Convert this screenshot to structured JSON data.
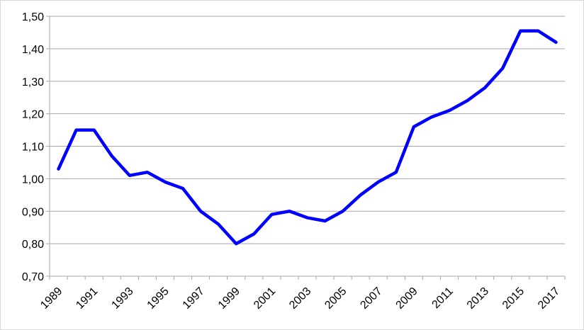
{
  "chart_data": {
    "type": "line",
    "categories": [
      "1989",
      null,
      "1991",
      null,
      "1993",
      null,
      "1995",
      null,
      "1997",
      null,
      "1999",
      null,
      "2001",
      null,
      "2003",
      null,
      "2005",
      null,
      "2007",
      null,
      "2009",
      null,
      "2011",
      null,
      "2013",
      null,
      "2015",
      null,
      "2017"
    ],
    "series": [
      {
        "color": "#0000ff",
        "values": [
          1.03,
          1.15,
          1.15,
          1.07,
          1.01,
          1.02,
          0.99,
          0.97,
          0.9,
          0.86,
          0.8,
          0.83,
          0.89,
          0.9,
          0.88,
          0.87,
          0.9,
          0.95,
          0.99,
          1.02,
          1.16,
          1.19,
          1.21,
          1.24,
          1.28,
          1.34,
          1.455,
          1.455,
          1.42
        ]
      }
    ],
    "ylim": [
      0.7,
      1.5
    ],
    "yticks": [
      {
        "value": 0.7,
        "label": "0,70"
      },
      {
        "value": 0.8,
        "label": "0,80"
      },
      {
        "value": 0.9,
        "label": "0,90"
      },
      {
        "value": 1.0,
        "label": "1,00"
      },
      {
        "value": 1.1,
        "label": "1,10"
      },
      {
        "value": 1.2,
        "label": "1,20"
      },
      {
        "value": 1.3,
        "label": "1,30"
      },
      {
        "value": 1.4,
        "label": "1,40"
      },
      {
        "value": 1.5,
        "label": "1,50"
      }
    ],
    "grid": true
  }
}
